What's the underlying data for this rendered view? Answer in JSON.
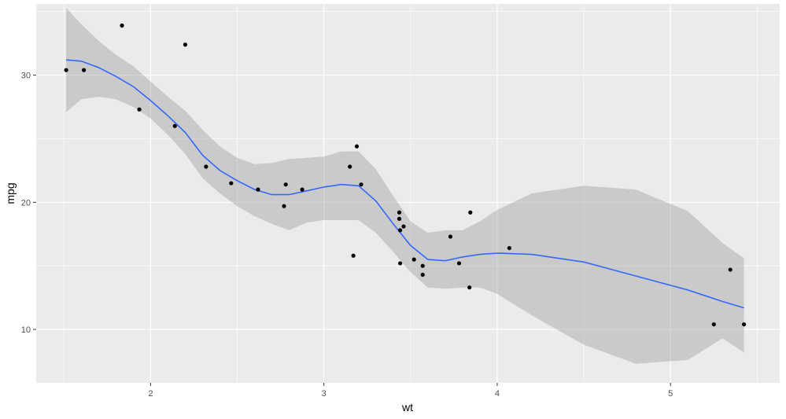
{
  "chart_data": {
    "type": "scatter",
    "xlabel": "wt",
    "ylabel": "mpg",
    "xlim": [
      1.34,
      5.63
    ],
    "ylim": [
      5.8,
      35.6
    ],
    "x_ticks": [
      2,
      3,
      4,
      5
    ],
    "y_ticks": [
      10,
      20,
      30
    ],
    "x_tick_labels": [
      "2",
      "3",
      "4",
      "5"
    ],
    "y_tick_labels": [
      "10",
      "20",
      "30"
    ],
    "grid": true,
    "colors": {
      "panel_background": "#ebebeb",
      "grid_major": "#ffffff",
      "points": "#000000",
      "smooth_line": "#3366ff",
      "confidence_band": "#999999"
    },
    "points": [
      [
        1.513,
        30.4
      ],
      [
        1.615,
        30.4
      ],
      [
        1.835,
        33.9
      ],
      [
        1.935,
        27.3
      ],
      [
        2.14,
        26.0
      ],
      [
        2.2,
        32.4
      ],
      [
        2.32,
        22.8
      ],
      [
        2.465,
        21.5
      ],
      [
        2.62,
        21.0
      ],
      [
        2.77,
        19.7
      ],
      [
        2.78,
        21.4
      ],
      [
        2.875,
        21.0
      ],
      [
        3.15,
        22.8
      ],
      [
        3.17,
        15.8
      ],
      [
        3.19,
        24.4
      ],
      [
        3.215,
        21.4
      ],
      [
        3.435,
        19.2
      ],
      [
        3.435,
        18.7
      ],
      [
        3.44,
        15.2
      ],
      [
        3.44,
        17.8
      ],
      [
        3.46,
        18.1
      ],
      [
        3.52,
        15.5
      ],
      [
        3.57,
        15.0
      ],
      [
        3.57,
        14.3
      ],
      [
        3.73,
        17.3
      ],
      [
        3.78,
        15.2
      ],
      [
        3.84,
        13.3
      ],
      [
        3.845,
        19.2
      ],
      [
        4.07,
        16.4
      ],
      [
        5.25,
        10.4
      ],
      [
        5.345,
        14.7
      ],
      [
        5.424,
        10.4
      ]
    ],
    "smooth": {
      "x": [
        1.513,
        1.6,
        1.7,
        1.8,
        1.9,
        2.0,
        2.1,
        2.2,
        2.3,
        2.4,
        2.5,
        2.6,
        2.7,
        2.8,
        2.9,
        3.0,
        3.1,
        3.2,
        3.3,
        3.4,
        3.5,
        3.6,
        3.7,
        3.8,
        3.9,
        4.0,
        4.2,
        4.5,
        4.8,
        5.1,
        5.3,
        5.424
      ],
      "y": [
        31.2,
        31.1,
        30.6,
        29.9,
        29.1,
        28.0,
        26.8,
        25.5,
        23.7,
        22.5,
        21.7,
        21.0,
        20.6,
        20.6,
        20.9,
        21.2,
        21.4,
        21.3,
        20.1,
        18.3,
        16.6,
        15.5,
        15.4,
        15.7,
        15.9,
        16.0,
        15.9,
        15.3,
        14.2,
        13.1,
        12.2,
        11.7
      ],
      "upper": [
        35.3,
        34.0,
        32.7,
        31.6,
        30.7,
        29.5,
        28.3,
        27.2,
        25.7,
        24.4,
        23.5,
        23.0,
        23.1,
        23.4,
        23.5,
        23.6,
        24.0,
        24.0,
        22.6,
        20.5,
        18.5,
        17.6,
        17.8,
        17.8,
        18.5,
        19.4,
        20.7,
        21.3,
        21.0,
        19.3,
        16.8,
        15.6
      ],
      "lower": [
        27.1,
        28.1,
        28.3,
        28.1,
        27.5,
        26.6,
        25.3,
        23.8,
        21.9,
        20.7,
        19.7,
        18.9,
        18.3,
        17.8,
        18.4,
        18.6,
        18.6,
        18.6,
        17.6,
        16.1,
        14.5,
        13.3,
        13.2,
        13.3,
        13.3,
        12.8,
        11.1,
        8.8,
        7.3,
        7.6,
        9.3,
        8.2
      ]
    }
  }
}
